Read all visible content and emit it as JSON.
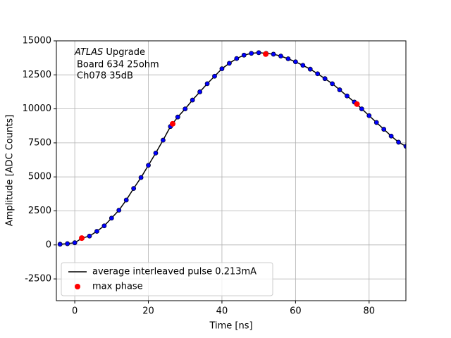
{
  "chart_data": {
    "type": "line",
    "annotation": [
      "ATLAS",
      "Upgrade",
      "Board 634 25ohm",
      "Ch078 35dB"
    ],
    "xlabel": "Time [ns]",
    "ylabel": "Amplitude [ADC Counts]",
    "xlim": [
      -5,
      90
    ],
    "ylim": [
      -4100,
      15000
    ],
    "xticks": [
      0,
      20,
      40,
      60,
      80
    ],
    "yticks": [
      -2500,
      0,
      2500,
      5000,
      7500,
      10000,
      12500,
      15000
    ],
    "grid": true,
    "legend": "lower left",
    "series": [
      {
        "name": "average interleaved pulse 0.213mA",
        "color": "#000000",
        "marker_color": "#0000ff",
        "x": [
          -4,
          -2,
          0,
          2,
          4,
          6,
          8,
          10,
          12,
          14,
          16,
          18,
          20,
          22,
          24,
          26,
          28,
          30,
          32,
          34,
          36,
          38,
          40,
          42,
          44,
          46,
          48,
          50,
          52,
          54,
          56,
          58,
          60,
          62,
          64,
          66,
          68,
          70,
          72,
          74,
          76,
          78,
          80,
          82,
          84,
          86,
          88,
          90
        ],
        "values": [
          50,
          90,
          160,
          500,
          650,
          1000,
          1400,
          1970,
          2550,
          3300,
          4150,
          4950,
          5850,
          6750,
          7700,
          8700,
          9400,
          10000,
          10650,
          11250,
          11850,
          12400,
          12950,
          13350,
          13700,
          13950,
          14080,
          14130,
          14080,
          14020,
          13880,
          13680,
          13460,
          13200,
          12920,
          12580,
          12220,
          11850,
          11400,
          10950,
          10500,
          10000,
          9500,
          9000,
          8500,
          8000,
          7550,
          7250
        ]
      },
      {
        "name": "max phase",
        "color": "#ff0000",
        "style": "markers",
        "x": [
          1.9,
          26.6,
          51.9,
          76.7
        ],
        "values": [
          500,
          8900,
          14030,
          10350
        ]
      }
    ]
  }
}
